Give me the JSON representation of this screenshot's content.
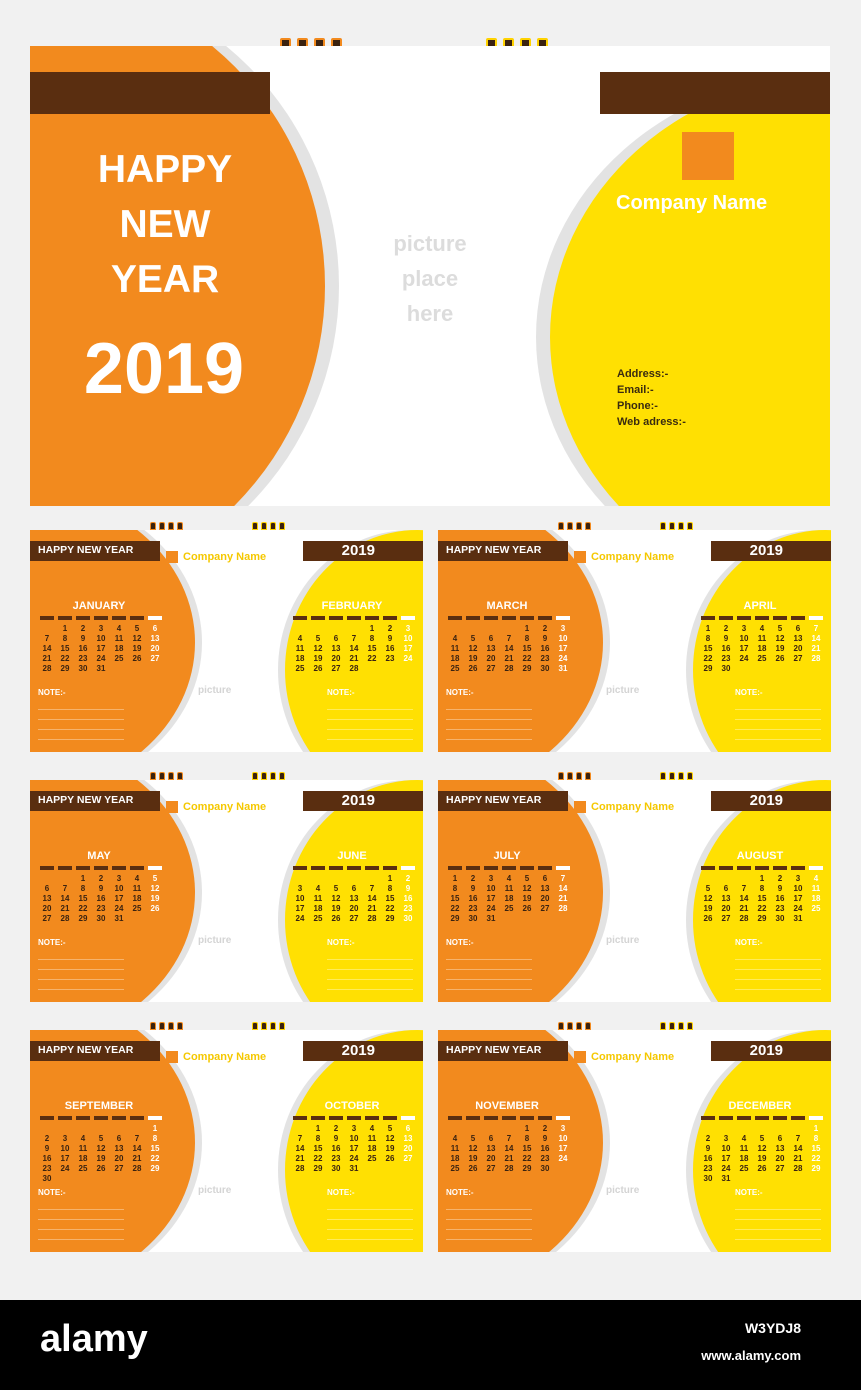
{
  "cover": {
    "headline": [
      "HAPPY",
      "NEW",
      "YEAR"
    ],
    "year": "2019",
    "picture": [
      "picture",
      "place",
      "here"
    ],
    "company": "Company Name",
    "contact": [
      "Address:-",
      "Email:-",
      "Phone:-",
      "Web adress:-"
    ]
  },
  "panel_labels": {
    "hny": "HAPPY NEW YEAR",
    "company": "Company Name",
    "year": "2019",
    "picture": "picture",
    "note": "NOTE:-"
  },
  "months": [
    {
      "name": "JANUARY",
      "start": 1,
      "days": 31
    },
    {
      "name": "FEBRUARY",
      "start": 4,
      "days": 28
    },
    {
      "name": "MARCH",
      "start": 4,
      "days": 31
    },
    {
      "name": "APRIL",
      "start": 0,
      "days": 30
    },
    {
      "name": "MAY",
      "start": 2,
      "days": 31
    },
    {
      "name": "JUNE",
      "start": 5,
      "days": 30
    },
    {
      "name": "JULY",
      "start": 0,
      "days": 31
    },
    {
      "name": "AUGUST",
      "start": 3,
      "days": 31
    },
    {
      "name": "SEPTEMBER",
      "start": 6,
      "days": 30
    },
    {
      "name": "OCTOBER",
      "start": 1,
      "days": 31
    },
    {
      "name": "NOVEMBER",
      "start": 4,
      "days": 30
    },
    {
      "name": "DECEMBER",
      "start": 6,
      "days": 31
    }
  ],
  "watermark": {
    "brand": "alamy",
    "image_id": "W3YDJ8",
    "url": "www.alamy.com"
  },
  "colors": {
    "orange": "#f28a1e",
    "yellow": "#ffe002",
    "brown": "#5a2e10"
  }
}
